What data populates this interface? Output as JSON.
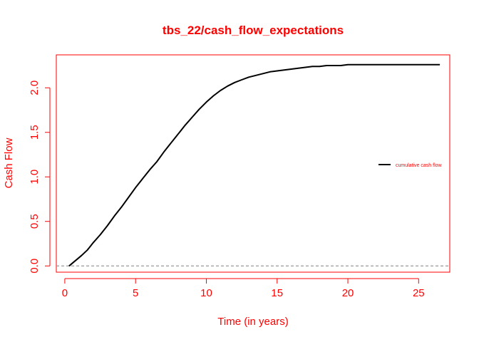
{
  "chart_data": {
    "type": "line",
    "title": "tbs_22/cash_flow_expectations",
    "xlabel": "Time (in years)",
    "ylabel": "Cash Flow",
    "xlim": [
      -0.6,
      27.2
    ],
    "ylim": [
      -0.07,
      2.37
    ],
    "xticks": [
      0,
      5,
      10,
      15,
      20,
      25
    ],
    "yticks": [
      0.0,
      0.5,
      1.0,
      1.5,
      2.0
    ],
    "xtick_labels": [
      "0",
      "5",
      "10",
      "15",
      "20",
      "25"
    ],
    "ytick_labels": [
      "0.0",
      "0.5",
      "1.0",
      "1.5",
      "2.0"
    ],
    "reference_line": {
      "y": 0,
      "style": "dashed",
      "color": "#999999"
    },
    "legend": {
      "position": "right",
      "entries": [
        "cumulative cash flow"
      ]
    },
    "series": [
      {
        "name": "cumulative cash flow",
        "color": "#000000",
        "x": [
          0.3,
          0.6,
          0.9,
          1.2,
          1.6,
          2.0,
          2.5,
          3.0,
          3.5,
          4.0,
          4.5,
          5.0,
          5.5,
          6.0,
          6.5,
          7.0,
          7.5,
          8.0,
          8.5,
          9.0,
          9.5,
          10.0,
          10.5,
          11.0,
          11.5,
          12.0,
          12.5,
          13.0,
          13.5,
          14.0,
          14.5,
          15.0,
          15.5,
          16.0,
          16.5,
          17.0,
          17.5,
          18.0,
          18.5,
          19.0,
          19.5,
          20.0,
          20.5,
          21.0,
          22.0,
          23.0,
          24.0,
          25.0,
          26.5
        ],
        "values": [
          0.0,
          0.04,
          0.08,
          0.12,
          0.18,
          0.26,
          0.35,
          0.45,
          0.56,
          0.66,
          0.77,
          0.88,
          0.98,
          1.08,
          1.17,
          1.28,
          1.38,
          1.48,
          1.58,
          1.67,
          1.76,
          1.84,
          1.91,
          1.97,
          2.02,
          2.06,
          2.09,
          2.12,
          2.14,
          2.16,
          2.18,
          2.19,
          2.2,
          2.21,
          2.22,
          2.23,
          2.24,
          2.24,
          2.25,
          2.25,
          2.25,
          2.26,
          2.26,
          2.26,
          2.26,
          2.26,
          2.26,
          2.26,
          2.26
        ]
      }
    ]
  }
}
